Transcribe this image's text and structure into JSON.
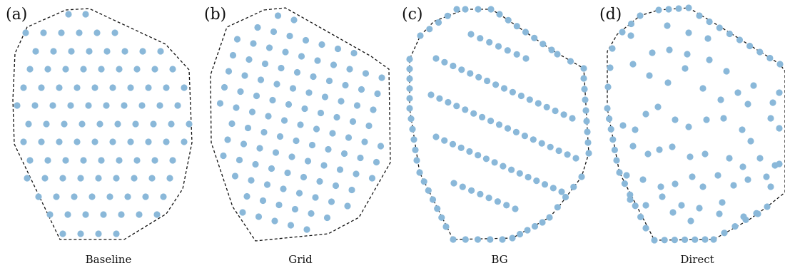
{
  "figure": {
    "panels": [
      {
        "id": "a",
        "label": "(a)",
        "caption": "Baseline"
      },
      {
        "id": "b",
        "label": "(b)",
        "caption": "Grid"
      },
      {
        "id": "c",
        "label": "(c)",
        "caption": "BG"
      },
      {
        "id": "d",
        "label": "(d)",
        "caption": "Direct"
      }
    ],
    "colors": {
      "point": "#8ab8d9",
      "boundary": "#111111",
      "background": "#ffffff"
    }
  }
}
